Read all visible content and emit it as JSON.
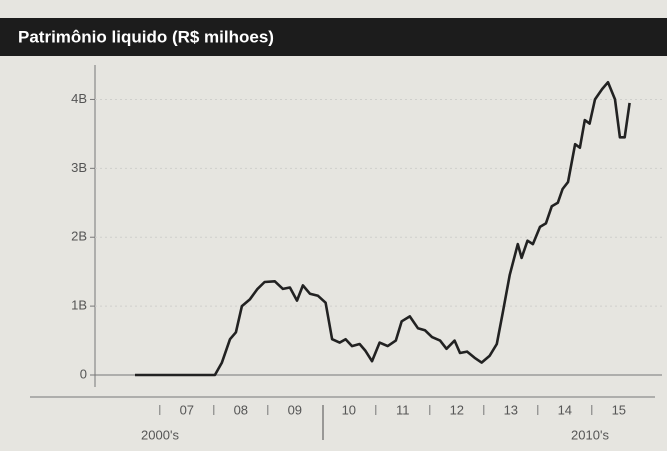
{
  "chart_data": {
    "type": "line",
    "title": "Patrimônio liquido (R$ milhoes)",
    "x_groups": [
      "2000's",
      "2010's"
    ],
    "x": [
      2006.54,
      2008.02,
      2008.15,
      2008.3,
      2008.41,
      2008.52,
      2008.67,
      2008.81,
      2008.94,
      2009.13,
      2009.28,
      2009.41,
      2009.54,
      2009.65,
      2009.78,
      2009.93,
      2010.07,
      2010.19,
      2010.33,
      2010.44,
      2010.56,
      2010.7,
      2010.81,
      2010.93,
      2011.07,
      2011.22,
      2011.37,
      2011.48,
      2011.63,
      2011.78,
      2011.91,
      2012.04,
      2012.19,
      2012.31,
      2012.46,
      2012.56,
      2012.69,
      2012.83,
      2012.96,
      2013.11,
      2013.24,
      2013.35,
      2013.48,
      2013.63,
      2013.7,
      2013.81,
      2013.91,
      2014.04,
      2014.15,
      2014.26,
      2014.37,
      2014.46,
      2014.56,
      2014.69,
      2014.78,
      2014.87,
      2014.96,
      2015.06,
      2015.19,
      2015.3,
      2015.43,
      2015.52,
      2015.61,
      2015.7
    ],
    "series": [
      {
        "color": "#222222",
        "values": [
          0,
          0,
          180000000,
          520000000,
          620000000,
          1000000000,
          1100000000,
          1250000000,
          1350000000,
          1360000000,
          1250000000,
          1270000000,
          1080000000,
          1300000000,
          1180000000,
          1150000000,
          1050000000,
          520000000,
          470000000,
          520000000,
          420000000,
          450000000,
          350000000,
          200000000,
          470000000,
          420000000,
          500000000,
          780000000,
          850000000,
          680000000,
          650000000,
          550000000,
          500000000,
          380000000,
          500000000,
          320000000,
          340000000,
          250000000,
          180000000,
          280000000,
          450000000,
          900000000,
          1450000000,
          1900000000,
          1700000000,
          1950000000,
          1900000000,
          2150000000,
          2200000000,
          2450000000,
          2500000000,
          2700000000,
          2800000000,
          3350000000,
          3300000000,
          3700000000,
          3650000000,
          4000000000,
          4150000000,
          4250000000,
          4000000000,
          3450000000,
          3450000000,
          3950000000
        ]
      }
    ],
    "xlim": [
      2005.8,
      2016.3
    ],
    "xticks": [
      {
        "value": 2007.5,
        "label": "07"
      },
      {
        "value": 2008.5,
        "label": "08"
      },
      {
        "value": 2009.5,
        "label": "09"
      },
      {
        "value": 2010.5,
        "label": "10"
      },
      {
        "value": 2011.5,
        "label": "11"
      },
      {
        "value": 2012.5,
        "label": "12"
      },
      {
        "value": 2013.5,
        "label": "13"
      },
      {
        "value": 2014.5,
        "label": "14"
      },
      {
        "value": 2015.5,
        "label": "15"
      }
    ],
    "ylim": [
      0,
      4500000000
    ],
    "yticks": [
      0,
      {
        "value": 1000000000,
        "label": "1B"
      },
      {
        "value": 2000000000,
        "label": "2B"
      },
      {
        "value": 3000000000,
        "label": "3B"
      },
      {
        "value": 4000000000,
        "label": "4B"
      }
    ],
    "grid": true
  }
}
